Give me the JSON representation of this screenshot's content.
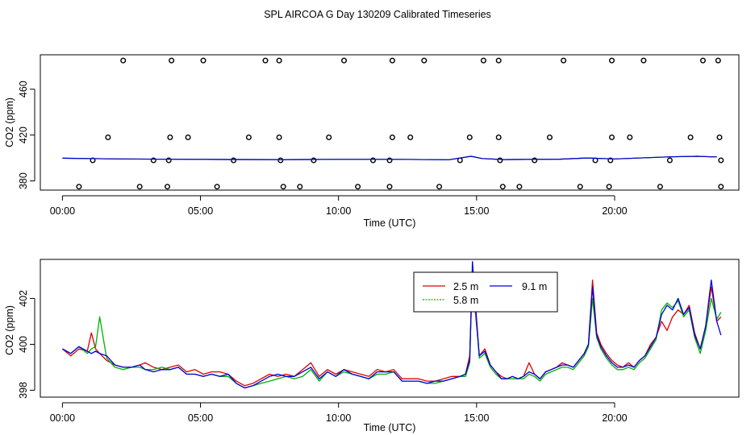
{
  "figure_title": "SPL AIRCOA G  Day 130209  Calibrated Timeseries",
  "colors": {
    "series_2_5": "#e00000",
    "series_5_8": "#00b000",
    "series_9_1": "#0000e0",
    "axis": "#000000"
  },
  "chart_data": [
    {
      "type": "scatter",
      "title": "",
      "xlabel": "Time (UTC)",
      "ylabel": "CO2 (ppm)",
      "xlim": [
        -0.8,
        24.5
      ],
      "ylim": [
        372,
        490
      ],
      "x_ticks": [
        0,
        5,
        10,
        15,
        20
      ],
      "x_tick_labels": [
        "00:00",
        "05:00",
        "10:00",
        "15:00",
        "20:00"
      ],
      "y_ticks": [
        380,
        420,
        460
      ],
      "y_tick_labels": [
        "380",
        "420",
        "460"
      ],
      "calibration_points": {
        "marker": "open-circle",
        "x": [
          2.2,
          3.95,
          5.1,
          7.35,
          7.85,
          10.2,
          11.95,
          13.1,
          15.25,
          15.8,
          18.15,
          19.9,
          21.05,
          23.2,
          23.75,
          1.65,
          3.9,
          4.55,
          6.75,
          7.85,
          9.65,
          11.95,
          12.6,
          14.75,
          15.8,
          17.65,
          19.9,
          20.55,
          22.75,
          23.8,
          1.1,
          3.3,
          3.85,
          6.2,
          7.9,
          9.1,
          11.25,
          11.85,
          14.4,
          15.85,
          17.1,
          19.3,
          19.85,
          22.0,
          23.85,
          0.6,
          2.8,
          3.8,
          5.6,
          8.0,
          8.6,
          10.7,
          11.85,
          13.65,
          15.95,
          16.55,
          18.75,
          19.8,
          21.65,
          23.85
        ],
        "y": [
          485,
          485,
          485,
          485,
          485,
          485,
          485,
          485,
          485,
          485,
          485,
          485,
          485,
          485,
          485,
          418,
          418,
          418,
          418,
          418,
          418,
          418,
          418,
          418,
          418,
          418,
          418,
          418,
          418,
          418,
          398,
          398,
          398,
          398,
          398,
          398,
          398,
          398,
          398,
          398,
          398,
          398,
          398,
          398,
          398,
          375,
          375,
          375,
          375,
          375,
          375,
          375,
          375,
          375,
          375,
          375,
          375,
          375,
          375,
          375
        ]
      },
      "series": [
        {
          "name": "2.5 m",
          "x": [
            0,
            2,
            4,
            6,
            8,
            10,
            12,
            14,
            14.8,
            15.2,
            16,
            18,
            19,
            20,
            22,
            23,
            23.5,
            23.7
          ],
          "values": [
            399.8,
            399.2,
            398.9,
            398.7,
            398.6,
            398.8,
            398.8,
            398.5,
            401.5,
            399.5,
            398.6,
            399.0,
            400.0,
            399.2,
            401.0,
            401.5,
            401.0,
            401.0
          ]
        },
        {
          "name": "5.8 m",
          "x": [
            0,
            2,
            4,
            6,
            8,
            10,
            12,
            14,
            14.8,
            15.2,
            16,
            18,
            19,
            20,
            22,
            23,
            23.5,
            23.7
          ],
          "values": [
            399.8,
            399.2,
            398.9,
            398.7,
            398.6,
            398.8,
            398.8,
            398.5,
            401.5,
            399.5,
            398.6,
            399.0,
            400.0,
            399.2,
            401.0,
            401.5,
            401.0,
            401.0
          ]
        },
        {
          "name": "9.1 m",
          "x": [
            0,
            2,
            4,
            6,
            8,
            10,
            12,
            14,
            14.8,
            15.2,
            16,
            18,
            19,
            20,
            22,
            23,
            23.5,
            23.7
          ],
          "values": [
            399.8,
            399.2,
            398.9,
            398.7,
            398.6,
            398.8,
            398.8,
            398.5,
            401.5,
            399.5,
            398.6,
            399.0,
            400.0,
            399.2,
            401.0,
            401.5,
            401.0,
            401.0
          ]
        }
      ]
    },
    {
      "type": "line",
      "title": "",
      "xlabel": "Time (UTC)",
      "ylabel": "CO2 (ppm)",
      "xlim": [
        -0.8,
        24.5
      ],
      "ylim": [
        397.7,
        403.7
      ],
      "x_ticks": [
        0,
        5,
        10,
        15,
        20
      ],
      "x_tick_labels": [
        "00:00",
        "05:00",
        "10:00",
        "15:00",
        "20:00"
      ],
      "y_ticks": [
        398,
        400,
        402
      ],
      "y_tick_labels": [
        "398",
        "400",
        "402"
      ],
      "legend": {
        "position": "top-center",
        "entries": [
          "2.5 m",
          "9.1 m",
          "5.8 m"
        ]
      },
      "series": [
        {
          "name": "2.5 m",
          "x": [
            0.0,
            0.3,
            0.6,
            0.9,
            1.05,
            1.2,
            1.35,
            1.6,
            1.9,
            2.2,
            2.5,
            2.8,
            3.0,
            3.3,
            3.6,
            3.9,
            4.2,
            4.5,
            4.8,
            5.1,
            5.4,
            5.7,
            6.0,
            6.3,
            6.6,
            6.9,
            7.2,
            7.5,
            7.8,
            8.1,
            8.4,
            8.7,
            9.0,
            9.3,
            9.6,
            9.9,
            10.2,
            10.5,
            10.8,
            11.1,
            11.4,
            11.7,
            12.0,
            12.3,
            12.6,
            12.9,
            13.2,
            13.5,
            13.8,
            14.1,
            14.4,
            14.6,
            14.75,
            14.85,
            14.95,
            15.1,
            15.3,
            15.5,
            15.7,
            15.9,
            16.1,
            16.3,
            16.5,
            16.7,
            16.9,
            17.1,
            17.3,
            17.5,
            17.7,
            17.9,
            18.1,
            18.3,
            18.5,
            18.7,
            18.9,
            19.05,
            19.2,
            19.35,
            19.5,
            19.7,
            19.9,
            20.1,
            20.3,
            20.5,
            20.7,
            20.9,
            21.1,
            21.3,
            21.5,
            21.7,
            21.9,
            22.1,
            22.3,
            22.5,
            22.7,
            22.9,
            23.1,
            23.3,
            23.5,
            23.7,
            23.85
          ],
          "values": [
            399.8,
            399.5,
            399.8,
            399.7,
            400.5,
            399.8,
            399.6,
            399.3,
            399.1,
            399.0,
            399.0,
            399.1,
            399.2,
            399.0,
            398.9,
            399.0,
            399.1,
            398.8,
            398.9,
            398.7,
            398.8,
            398.8,
            398.7,
            398.4,
            398.2,
            398.3,
            398.5,
            398.7,
            398.6,
            398.7,
            398.6,
            398.9,
            399.2,
            398.6,
            398.9,
            398.7,
            398.9,
            398.8,
            398.7,
            398.6,
            398.9,
            398.8,
            398.9,
            398.5,
            398.5,
            398.5,
            398.4,
            398.4,
            398.5,
            398.6,
            398.6,
            398.7,
            399.5,
            403.0,
            401.5,
            399.5,
            399.8,
            399.1,
            398.8,
            398.6,
            398.5,
            398.6,
            398.5,
            398.6,
            399.2,
            398.7,
            398.5,
            398.8,
            398.9,
            399.0,
            399.2,
            399.1,
            399.0,
            399.3,
            399.6,
            400.0,
            402.8,
            400.5,
            400.0,
            399.6,
            399.3,
            399.1,
            399.0,
            399.2,
            399.0,
            399.3,
            399.5,
            400.0,
            400.3,
            401.0,
            400.6,
            401.2,
            401.5,
            401.3,
            401.7,
            400.5,
            399.8,
            400.8,
            402.5,
            401.0,
            401.2
          ]
        },
        {
          "name": "5.8 m",
          "x": [
            0.0,
            0.3,
            0.6,
            0.9,
            1.05,
            1.2,
            1.35,
            1.6,
            1.9,
            2.2,
            2.5,
            2.8,
            3.0,
            3.3,
            3.6,
            3.9,
            4.2,
            4.5,
            4.8,
            5.1,
            5.4,
            5.7,
            6.0,
            6.3,
            6.6,
            6.9,
            7.2,
            7.5,
            7.8,
            8.1,
            8.4,
            8.7,
            9.0,
            9.3,
            9.6,
            9.9,
            10.2,
            10.5,
            10.8,
            11.1,
            11.4,
            11.7,
            12.0,
            12.3,
            12.6,
            12.9,
            13.2,
            13.5,
            13.8,
            14.1,
            14.4,
            14.6,
            14.75,
            14.85,
            14.95,
            15.1,
            15.3,
            15.5,
            15.7,
            15.9,
            16.1,
            16.3,
            16.5,
            16.7,
            16.9,
            17.1,
            17.3,
            17.5,
            17.7,
            17.9,
            18.1,
            18.3,
            18.5,
            18.7,
            18.9,
            19.05,
            19.2,
            19.35,
            19.5,
            19.7,
            19.9,
            20.1,
            20.3,
            20.5,
            20.7,
            20.9,
            21.1,
            21.3,
            21.5,
            21.7,
            21.9,
            22.1,
            22.3,
            22.5,
            22.7,
            22.9,
            23.1,
            23.3,
            23.5,
            23.7,
            23.85
          ],
          "values": [
            399.8,
            399.6,
            399.9,
            399.6,
            399.8,
            399.9,
            401.2,
            399.4,
            399.0,
            398.9,
            399.0,
            399.0,
            398.9,
            398.9,
            399.0,
            398.9,
            399.0,
            398.7,
            398.7,
            398.6,
            398.7,
            398.6,
            398.6,
            398.3,
            398.1,
            398.2,
            398.3,
            398.4,
            398.5,
            398.6,
            398.5,
            398.6,
            398.9,
            398.4,
            398.8,
            398.6,
            398.8,
            398.7,
            398.6,
            398.5,
            398.7,
            398.7,
            398.8,
            398.4,
            398.4,
            398.4,
            398.3,
            398.3,
            398.4,
            398.5,
            398.6,
            398.6,
            399.2,
            403.3,
            401.8,
            399.4,
            399.6,
            399.0,
            398.7,
            398.5,
            398.5,
            398.5,
            398.5,
            398.5,
            398.7,
            398.6,
            398.4,
            398.7,
            398.8,
            398.9,
            399.0,
            399.0,
            398.9,
            399.2,
            399.5,
            399.9,
            402.0,
            400.3,
            399.8,
            399.4,
            399.1,
            398.9,
            398.9,
            399.0,
            398.9,
            399.2,
            399.4,
            399.8,
            400.2,
            401.5,
            401.8,
            401.6,
            401.9,
            401.2,
            401.5,
            400.3,
            399.6,
            400.6,
            402.0,
            401.1,
            401.4
          ]
        },
        {
          "name": "9.1 m",
          "x": [
            0.0,
            0.3,
            0.6,
            0.9,
            1.05,
            1.2,
            1.35,
            1.6,
            1.9,
            2.2,
            2.5,
            2.8,
            3.0,
            3.3,
            3.6,
            3.9,
            4.2,
            4.5,
            4.8,
            5.1,
            5.4,
            5.7,
            6.0,
            6.3,
            6.6,
            6.9,
            7.2,
            7.5,
            7.8,
            8.1,
            8.4,
            8.7,
            9.0,
            9.3,
            9.6,
            9.9,
            10.2,
            10.5,
            10.8,
            11.1,
            11.4,
            11.7,
            12.0,
            12.3,
            12.6,
            12.9,
            13.2,
            13.5,
            13.8,
            14.1,
            14.4,
            14.6,
            14.75,
            14.85,
            14.95,
            15.1,
            15.3,
            15.5,
            15.7,
            15.9,
            16.1,
            16.3,
            16.5,
            16.7,
            16.9,
            17.1,
            17.3,
            17.5,
            17.7,
            17.9,
            18.1,
            18.3,
            18.5,
            18.7,
            18.9,
            19.05,
            19.2,
            19.35,
            19.5,
            19.7,
            19.9,
            20.1,
            20.3,
            20.5,
            20.7,
            20.9,
            21.1,
            21.3,
            21.5,
            21.7,
            21.9,
            22.1,
            22.3,
            22.5,
            22.7,
            22.9,
            23.1,
            23.3,
            23.5,
            23.7,
            23.85
          ],
          "values": [
            399.8,
            399.6,
            399.9,
            399.7,
            399.6,
            399.7,
            399.6,
            399.5,
            399.1,
            399.0,
            399.0,
            399.1,
            398.9,
            398.8,
            398.9,
            398.9,
            399.0,
            398.7,
            398.7,
            398.6,
            398.7,
            398.6,
            398.7,
            398.3,
            398.1,
            398.2,
            398.4,
            398.6,
            398.7,
            398.6,
            398.6,
            398.8,
            399.0,
            398.5,
            398.8,
            398.6,
            398.9,
            398.7,
            398.6,
            398.5,
            398.8,
            398.8,
            398.8,
            398.4,
            398.4,
            398.4,
            398.3,
            398.4,
            398.4,
            398.5,
            398.6,
            398.7,
            399.3,
            403.6,
            401.9,
            399.5,
            399.7,
            399.1,
            398.8,
            398.5,
            398.5,
            398.6,
            398.5,
            398.6,
            398.8,
            398.7,
            398.5,
            398.8,
            398.9,
            399.0,
            399.1,
            399.1,
            399.0,
            399.3,
            399.6,
            400.0,
            402.5,
            400.4,
            399.9,
            399.5,
            399.2,
            399.0,
            399.0,
            399.1,
            399.0,
            399.3,
            399.5,
            399.9,
            400.3,
            401.3,
            401.7,
            401.5,
            402.0,
            401.3,
            401.6,
            400.4,
            399.8,
            400.8,
            402.8,
            401.0,
            400.4
          ]
        }
      ]
    }
  ]
}
